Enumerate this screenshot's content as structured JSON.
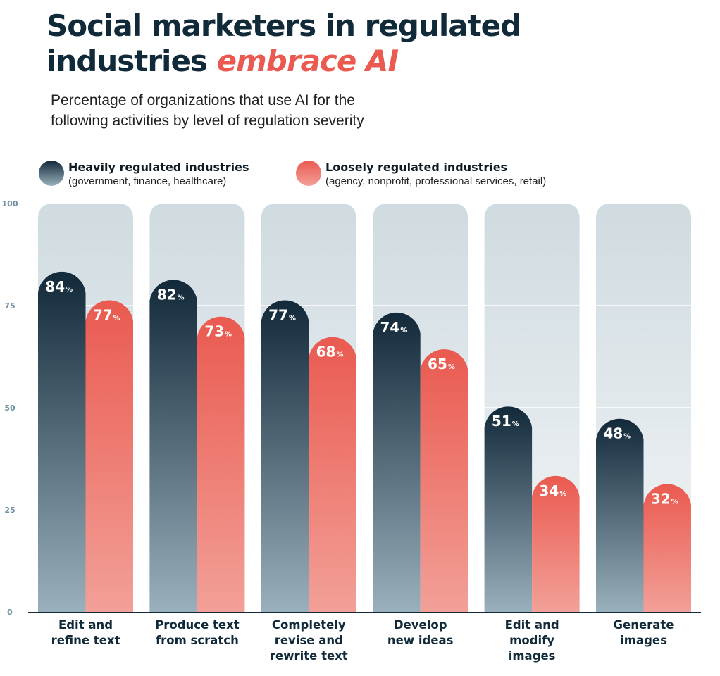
{
  "header": {
    "title_line1": "Social marketers in regulated",
    "title_line2_plain": "industries ",
    "title_line2_accent": "embrace AI",
    "subtitle_line1": "Percentage of organizations that use AI for the",
    "subtitle_line2": "following activities by level of regulation severity"
  },
  "legend": [
    {
      "label": "Heavily regulated industries",
      "description": "(government, finance, healthcare)",
      "icon": "gradient-circle-navy"
    },
    {
      "label": "Loosely regulated industries",
      "description": "(agency, nonprofit, professional services, retail)",
      "icon": "gradient-circle-coral"
    }
  ],
  "colors": {
    "heavy_top": "#12293a",
    "heavy_bottom": "#9ab0bc",
    "loose_top": "#ea5a50",
    "loose_bottom": "#f2a098",
    "track_top": "#cfdbe0",
    "track_bottom": "#f4f6f8",
    "title": "#112a3a",
    "accent": "#ea5a50",
    "axis_text": "#6e8fa0"
  },
  "chart_data": {
    "type": "bar",
    "title": "Social marketers in regulated industries embrace AI",
    "subtitle": "Percentage of organizations that use AI for the following activities by level of regulation severity",
    "xlabel": "",
    "ylabel": "",
    "ylim": [
      0,
      100
    ],
    "yticks": [
      0,
      25,
      50,
      75,
      100
    ],
    "grid": true,
    "legend_position": "top-left",
    "value_suffix": "%",
    "categories": [
      [
        "Edit and",
        "refine text"
      ],
      [
        "Produce text",
        "from scratch"
      ],
      [
        "Completely",
        "revise and",
        "rewrite text"
      ],
      [
        "Develop",
        "new ideas"
      ],
      [
        "Edit and",
        "modify",
        "images"
      ],
      [
        "Generate",
        "images"
      ]
    ],
    "series": [
      {
        "name": "Heavily regulated industries",
        "values": [
          84,
          82,
          77,
          74,
          51,
          48
        ]
      },
      {
        "name": "Loosely regulated industries",
        "values": [
          77,
          73,
          68,
          65,
          34,
          32
        ]
      }
    ]
  }
}
